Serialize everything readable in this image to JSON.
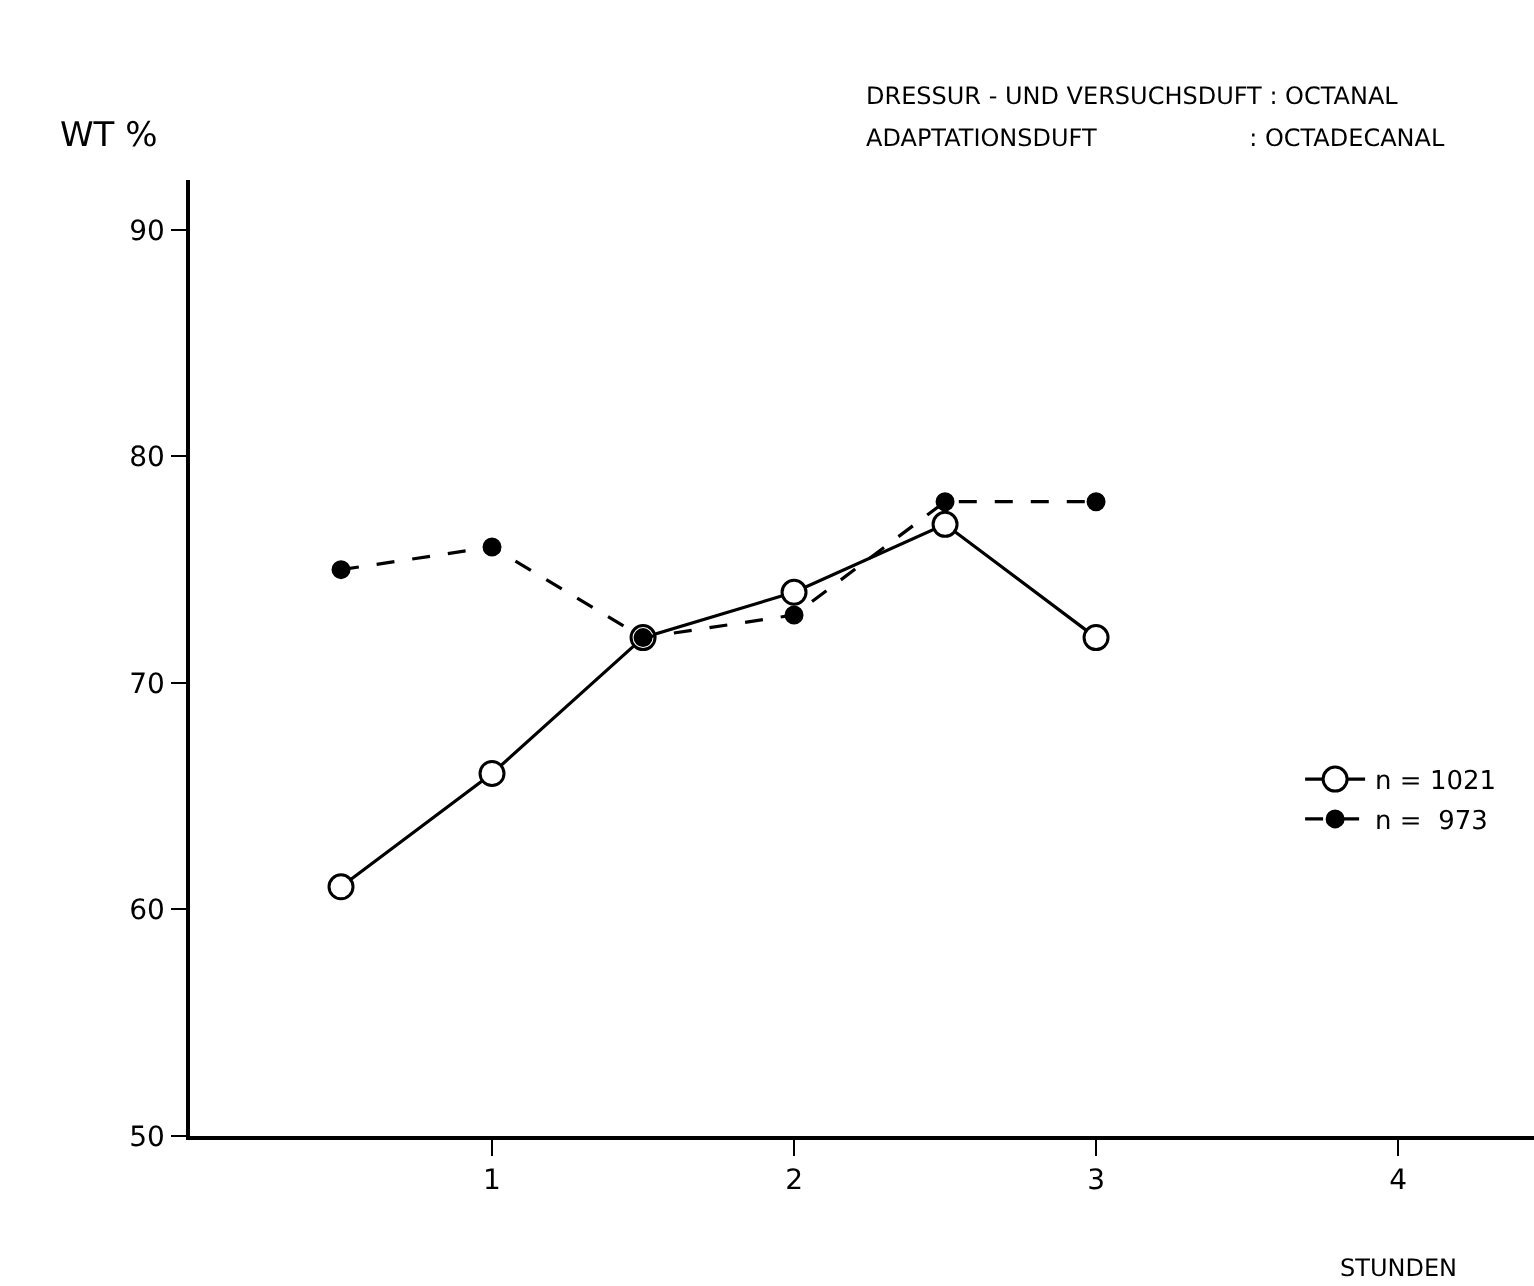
{
  "chart_data": {
    "type": "line",
    "annotations": [
      "DRESSUR - UND VERSUCHSDUFT : OCTANAL",
      "ADAPTATIONSDUFT                    : OCTADECANAL"
    ],
    "xlabel": "STUNDEN",
    "ylabel": "WT %",
    "x": [
      0.5,
      1,
      1.5,
      2,
      2.5,
      3
    ],
    "series": [
      {
        "name": "n = 1021",
        "color": "#000000",
        "line_style": "solid",
        "marker": "circle",
        "values": [
          61,
          66,
          72,
          74,
          77,
          72
        ]
      },
      {
        "name": "n =  973",
        "color": "#000000",
        "line_style": "dashed",
        "marker": "circle",
        "values": [
          75,
          76,
          72,
          73,
          78,
          78
        ]
      }
    ],
    "xlim": [
      0,
      4.45
    ],
    "xticks": [
      1,
      2,
      3,
      4
    ],
    "ylim": [
      50,
      92.2
    ],
    "yticks": [
      50,
      60,
      70,
      80,
      90
    ],
    "legend": "bottom right"
  }
}
